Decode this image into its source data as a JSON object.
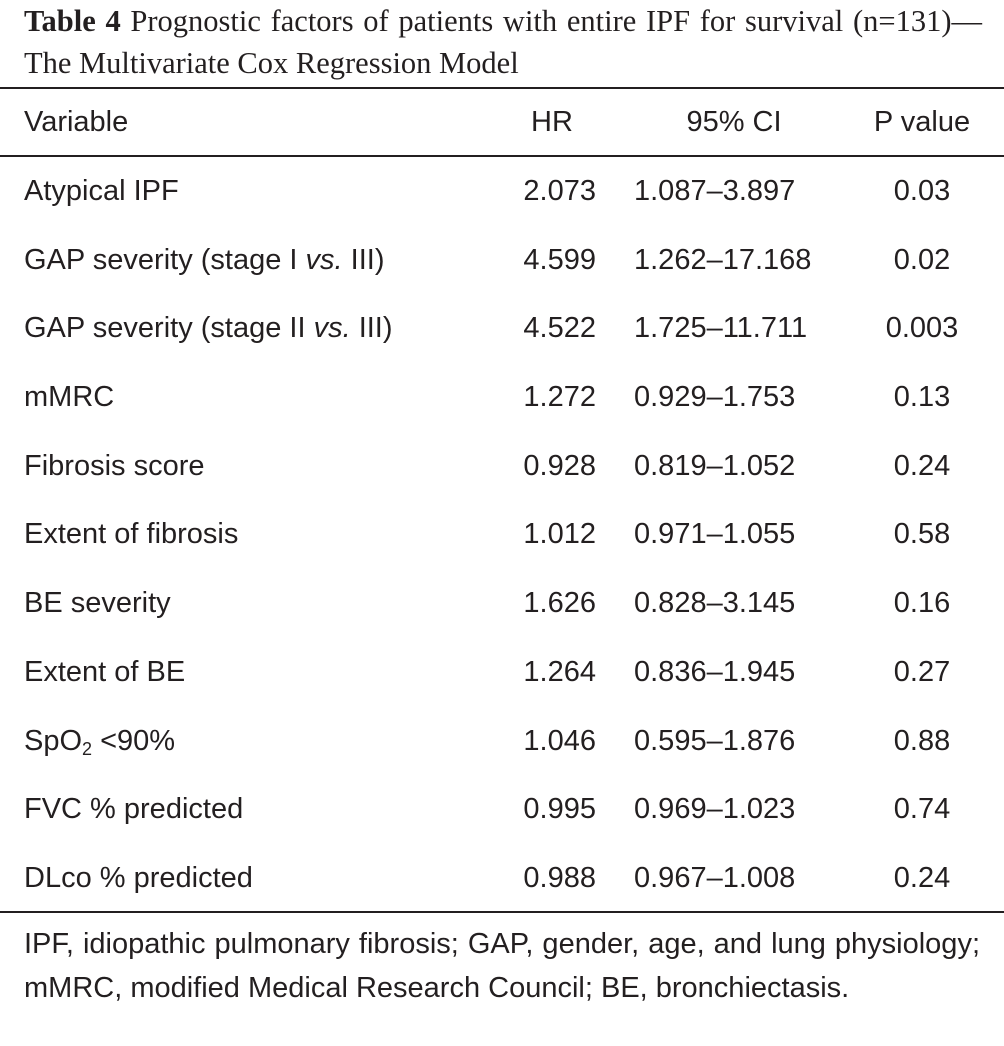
{
  "caption": {
    "label": "Table 4",
    "text": " Prognostic factors of patients with entire IPF for survival (n=131)—The Multivariate Cox Regression Model"
  },
  "headers": {
    "variable": "Variable",
    "hr": "HR",
    "ci": "95% CI",
    "p": "P value"
  },
  "rows": [
    {
      "variable": "Atypical IPF",
      "hr": "2.073",
      "ci": "1.087–3.897",
      "p": "0.03"
    },
    {
      "variable_pre": "GAP severity (stage I ",
      "variable_ital": "vs.",
      "variable_post": " III)",
      "hr": "4.599",
      "ci": "1.262–17.168",
      "p": "0.02"
    },
    {
      "variable_pre": "GAP severity (stage II ",
      "variable_ital": "vs.",
      "variable_post": " III)",
      "hr": "4.522",
      "ci": "1.725–11.711",
      "p": "0.003"
    },
    {
      "variable": "mMRC",
      "hr": "1.272",
      "ci": "0.929–1.753",
      "p": "0.13"
    },
    {
      "variable": "Fibrosis score",
      "hr": "0.928",
      "ci": "0.819–1.052",
      "p": "0.24"
    },
    {
      "variable": "Extent of fibrosis",
      "hr": "1.012",
      "ci": "0.971–1.055",
      "p": "0.58"
    },
    {
      "variable": "BE severity",
      "hr": "1.626",
      "ci": "0.828–3.145",
      "p": "0.16"
    },
    {
      "variable": "Extent of BE",
      "hr": "1.264",
      "ci": "0.836–1.945",
      "p": "0.27"
    },
    {
      "variable_pre": "SpO",
      "variable_sub": "2",
      "variable_post": " <90%",
      "hr": "1.046",
      "ci": "0.595–1.876",
      "p": "0.88"
    },
    {
      "variable": "FVC % predicted",
      "hr": "0.995",
      "ci": "0.969–1.023",
      "p": "0.74"
    },
    {
      "variable": "DLco % predicted",
      "hr": "0.988",
      "ci": "0.967–1.008",
      "p": "0.24"
    }
  ],
  "footnote": "IPF, idiopathic pulmonary fibrosis; GAP, gender, age, and lung physiology; mMRC, modified Medical Research Council; BE, bronchiectasis."
}
